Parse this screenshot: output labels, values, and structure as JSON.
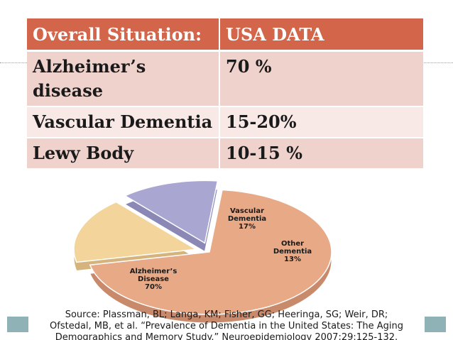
{
  "table": {
    "headers": [
      "Overall Situation:",
      "USA DATA"
    ],
    "rows": [
      [
        "Alzheimer’s disease",
        "70 %"
      ],
      [
        "Vascular Dementia",
        "15-20%"
      ],
      [
        "Lewy Body",
        "10-15 %"
      ]
    ]
  },
  "chart_data": {
    "type": "pie",
    "title": "",
    "slices": [
      {
        "label_lines": [
          "Alzheimer’s",
          "Disease",
          "70%"
        ],
        "value": 70,
        "color": "#e8a987"
      },
      {
        "label_lines": [
          "Vascular",
          "Dementia",
          "17%"
        ],
        "value": 17,
        "color": "#f3d49b"
      },
      {
        "label_lines": [
          "Other",
          "Dementia",
          "13%"
        ],
        "value": 13,
        "color": "#a9a6d2"
      }
    ],
    "exploded": [
      "Vascular Dementia",
      "Other Dementia"
    ]
  },
  "source": {
    "line1": "Source: Plassman, BL; Langa, KM; Fisher, GG; Heeringa, SG; Weir, DR;",
    "line2": "Ofstedal, MB, et al. “Prevalence of Dementia in the United States: The Aging",
    "line3": "Demographics and Memory Study.” Neuroepidemiology 2007;29:125-132."
  },
  "colors": {
    "header_bg": "#d2654a",
    "row_dark": "#f0d2cc",
    "row_light": "#f8e9e6",
    "accent_bar": "#8fb2b6"
  }
}
